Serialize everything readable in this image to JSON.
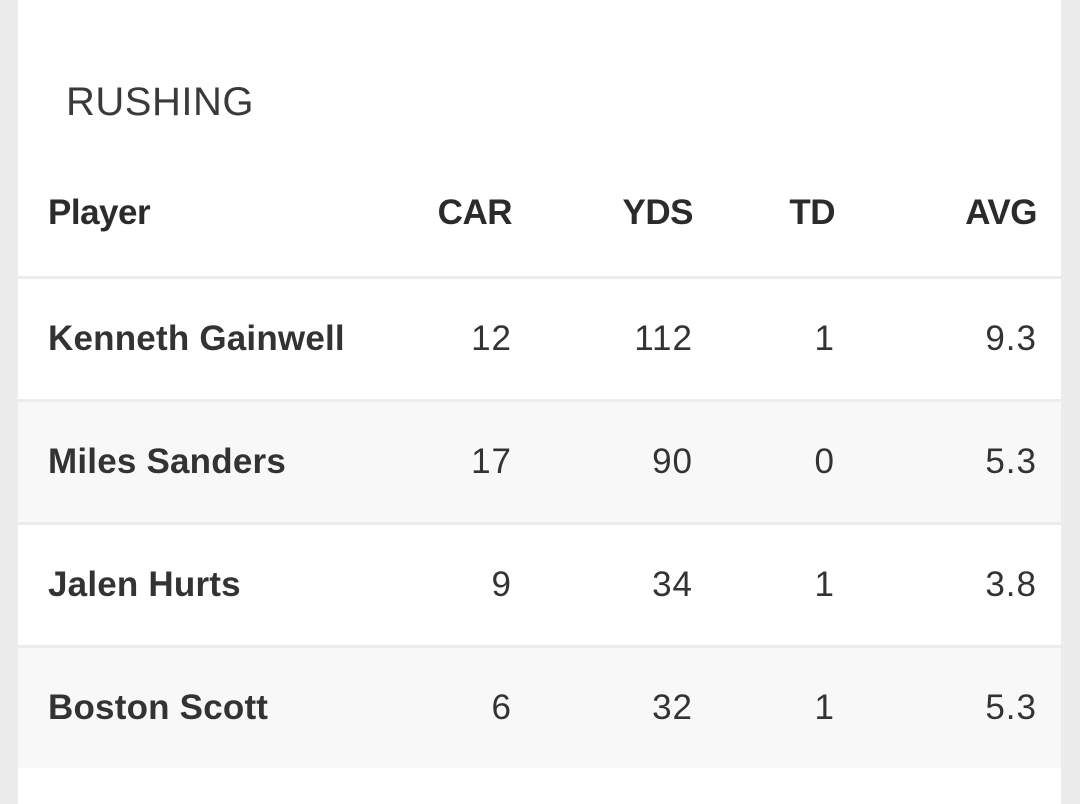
{
  "section": {
    "title": "RUSHING"
  },
  "table": {
    "headers": {
      "player": "Player",
      "car": "CAR",
      "yds": "YDS",
      "td": "TD",
      "avg": "AVG"
    },
    "rows": [
      {
        "player": "Kenneth Gainwell",
        "car": "12",
        "yds": "112",
        "td": "1",
        "avg": "9.3"
      },
      {
        "player": "Miles Sanders",
        "car": "17",
        "yds": "90",
        "td": "0",
        "avg": "5.3"
      },
      {
        "player": "Jalen Hurts",
        "car": "9",
        "yds": "34",
        "td": "1",
        "avg": "3.8"
      },
      {
        "player": "Boston Scott",
        "car": "6",
        "yds": "32",
        "td": "1",
        "avg": "5.3"
      }
    ]
  },
  "colors": {
    "page_background": "#ececec",
    "card_background": "#ffffff",
    "alt_row_background": "#f8f8f8",
    "text": "#2b2b2b"
  }
}
